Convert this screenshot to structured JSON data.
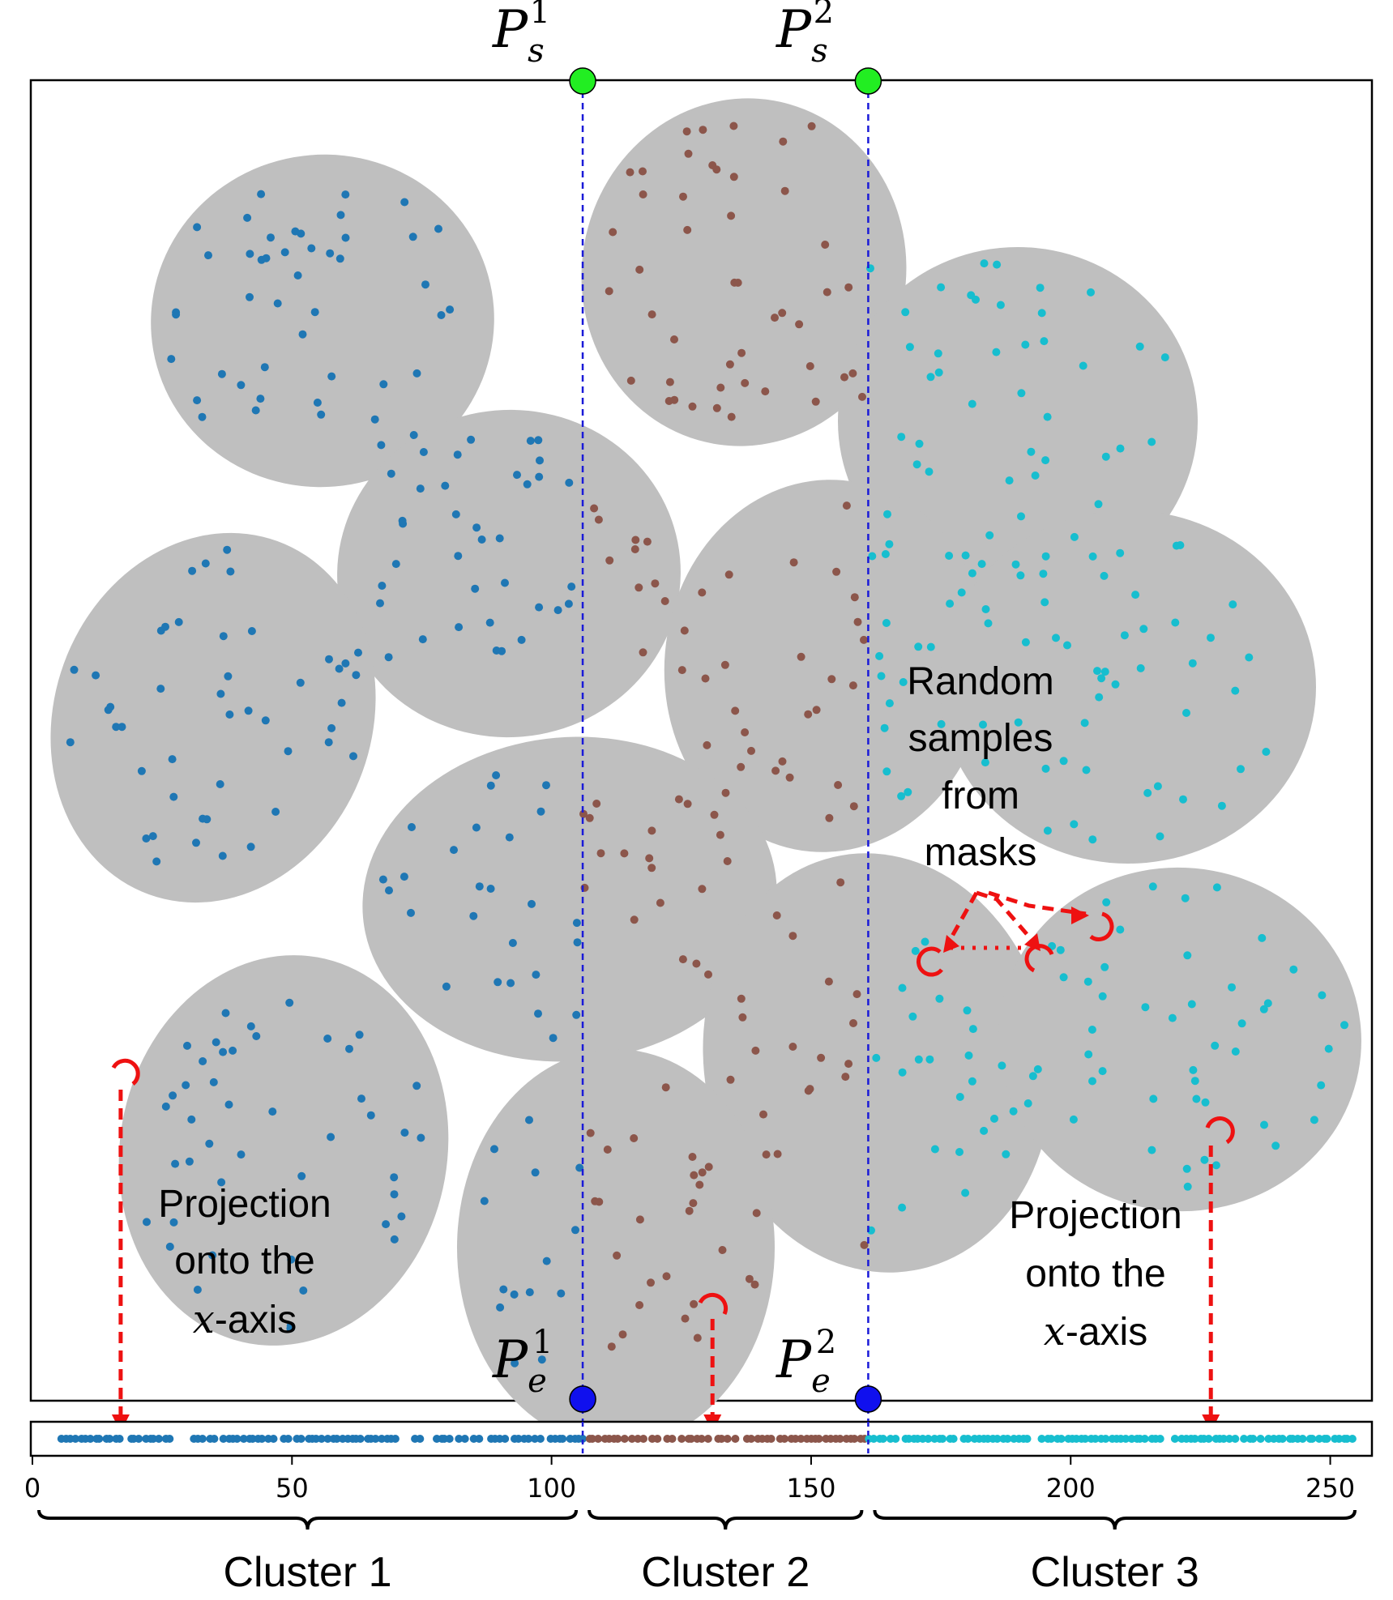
{
  "figure": {
    "top_labels": [
      {
        "base": "P",
        "sub": "s",
        "sup": "1"
      },
      {
        "base": "P",
        "sub": "s",
        "sup": "2"
      }
    ],
    "bottom_labels": [
      {
        "base": "P",
        "sub": "e",
        "sup": "1"
      },
      {
        "base": "P",
        "sub": "e",
        "sup": "2"
      }
    ],
    "annotations": {
      "random_samples": [
        "Random",
        "samples",
        "from",
        "masks"
      ],
      "projection_left": [
        "Projection",
        "onto the",
        "-axis"
      ],
      "projection_right": [
        "Projection",
        "onto the",
        "-axis"
      ],
      "axis_var": "x"
    },
    "clusters": [
      {
        "label": "Cluster 1",
        "color": "#1f77b4"
      },
      {
        "label": "Cluster 2",
        "color": "#8c564b"
      },
      {
        "label": "Cluster 3",
        "color": "#17becf"
      }
    ],
    "colors": {
      "mask": "#bfbfbf",
      "start_point": "#22ee22",
      "end_point": "#1010ee",
      "divider": "#1a1ad8",
      "annotation": "#ee1111"
    }
  },
  "chart_data": {
    "type": "scatter",
    "title": "",
    "xlabel": "",
    "ylabel": "",
    "xlim": [
      0,
      256
    ],
    "x_ticks": [
      0,
      50,
      100,
      150,
      200,
      250
    ],
    "dividers": [
      106,
      161
    ],
    "clusters": [
      {
        "name": "Cluster 1",
        "range": [
          0,
          106
        ]
      },
      {
        "name": "Cluster 2",
        "range": [
          106,
          161
        ]
      },
      {
        "name": "Cluster 3",
        "range": [
          161,
          256
        ]
      }
    ],
    "projection_arrows_x": [
      17,
      131,
      227
    ]
  }
}
